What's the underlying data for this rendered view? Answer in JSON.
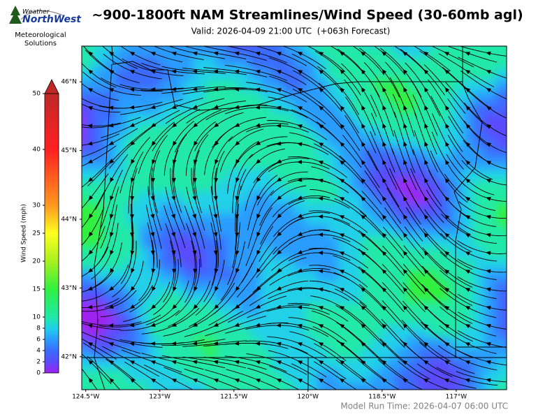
{
  "header": {
    "logo_top": "Weather",
    "logo_main": "NorthWest",
    "org": [
      "Meteorological",
      "Solutions"
    ],
    "title": "~900-1800ft NAM Streamlines/Wind Speed (30-60mb agl)",
    "subtitle": "Valid: 2026-04-09 21:00 UTC  (+063h Forecast)"
  },
  "colorbar": {
    "label": "Wind Speed (mph)",
    "lim": [
      0,
      50
    ],
    "ticks": [
      0,
      2,
      4,
      6,
      8,
      10,
      15,
      20,
      25,
      30,
      40,
      50
    ],
    "colors": [
      "#a020f0",
      "#5a4cff",
      "#3a6cff",
      "#2a9cff",
      "#20d0e8",
      "#20e8a8",
      "#30f040",
      "#a8f020",
      "#ffff20",
      "#ff9820",
      "#ff2020",
      "#c02828"
    ]
  },
  "map": {
    "xlim": [
      -124.58,
      -115.98
    ],
    "ylim": [
      41.52,
      46.52
    ],
    "xticks": [
      {
        "value": -124.5,
        "label": "124.5°W"
      },
      {
        "value": -123,
        "label": "123°W"
      },
      {
        "value": -121.5,
        "label": "121.5°W"
      },
      {
        "value": -120,
        "label": "120°W"
      },
      {
        "value": -118.5,
        "label": "118.5°W"
      },
      {
        "value": -117,
        "label": "117°W"
      }
    ],
    "yticks": [
      {
        "value": 46,
        "label": "46°N"
      },
      {
        "value": 45,
        "label": "45°N"
      },
      {
        "value": 44,
        "label": "44°N"
      },
      {
        "value": 43,
        "label": "43°N"
      },
      {
        "value": 42,
        "label": "42°N"
      }
    ]
  },
  "footer": "Model Run Time: 2026-04-07 06:00 UTC"
}
